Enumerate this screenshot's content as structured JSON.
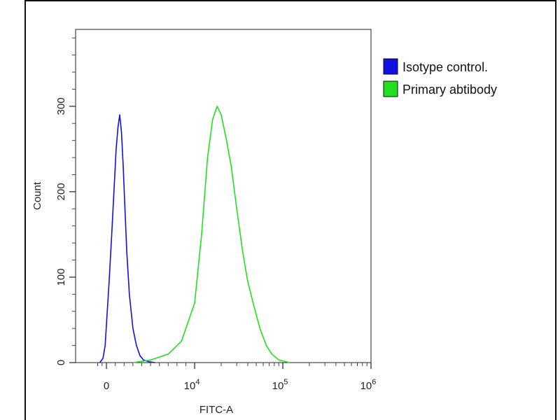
{
  "chart_data": {
    "type": "line",
    "xlabel": "FITC-A",
    "ylabel": "Count",
    "x_scale": "biexponential",
    "xlim": [
      -2000,
      1000000
    ],
    "ylim": [
      0,
      390
    ],
    "x_ticks": [
      {
        "value": 0,
        "base": "0",
        "exp": ""
      },
      {
        "value": 10000,
        "base": "10",
        "exp": "4"
      },
      {
        "value": 100000,
        "base": "10",
        "exp": "5"
      },
      {
        "value": 1000000,
        "base": "10",
        "exp": "6"
      }
    ],
    "y_ticks": [
      {
        "value": 0,
        "label": "0"
      },
      {
        "value": 100,
        "label": "100"
      },
      {
        "value": 200,
        "label": "200"
      },
      {
        "value": 300,
        "label": "300"
      }
    ],
    "grid": false,
    "legend_position": "right",
    "series": [
      {
        "name": "Isotype control.",
        "color": "#1010e0",
        "x": [
          -1500,
          -800,
          -300,
          0,
          300,
          600,
          900,
          1100,
          1300,
          1500,
          1700,
          1900,
          2100,
          2300,
          2600,
          3000,
          3400,
          3800,
          4200,
          4800,
          5500
        ],
        "y": [
          0,
          5,
          20,
          45,
          95,
          150,
          210,
          250,
          275,
          290,
          270,
          230,
          180,
          130,
          80,
          40,
          20,
          8,
          3,
          1,
          0
        ]
      },
      {
        "name": "Primary abtibody",
        "color": "#20e020",
        "x": [
          3000,
          5000,
          7000,
          8500,
          10000,
          12000,
          14000,
          16000,
          18000,
          20000,
          23000,
          26000,
          30000,
          35000,
          40000,
          46000,
          55000,
          65000,
          75000,
          90000,
          120000
        ],
        "y": [
          0,
          3,
          10,
          25,
          70,
          150,
          240,
          285,
          300,
          290,
          260,
          230,
          180,
          130,
          95,
          70,
          40,
          20,
          10,
          3,
          0
        ]
      }
    ]
  }
}
